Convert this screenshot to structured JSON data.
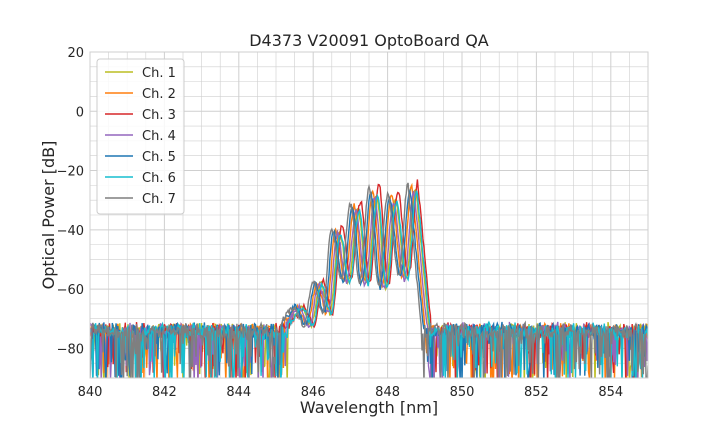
{
  "chart_data": {
    "type": "line",
    "title": "D4373 V20091 OptoBoard QA",
    "xlabel": "Wavelength [nm]",
    "ylabel": "Optical Power [dB]",
    "xlim": [
      840,
      855
    ],
    "ylim": [
      -90,
      20
    ],
    "xticks": [
      840,
      842,
      844,
      846,
      848,
      850,
      852,
      854
    ],
    "yticks": [
      -80,
      -60,
      -40,
      -20,
      0,
      20
    ],
    "grid": true,
    "legend_position": "top-left",
    "noise_floor_db": -72,
    "series": [
      {
        "name": "Ch. 1",
        "color": "#bcbd22",
        "shift": 0.05,
        "peak_db": -26
      },
      {
        "name": "Ch. 2",
        "color": "#ff7f0e",
        "shift": -0.05,
        "peak_db": -25
      },
      {
        "name": "Ch. 3",
        "color": "#d62728",
        "shift": 0.12,
        "peak_db": -23
      },
      {
        "name": "Ch. 4",
        "color": "#9467bd",
        "shift": 0.0,
        "peak_db": -27
      },
      {
        "name": "Ch. 5",
        "color": "#1f77b4",
        "shift": -0.1,
        "peak_db": -26
      },
      {
        "name": "Ch. 6",
        "color": "#17becf",
        "shift": 0.08,
        "peak_db": -27
      },
      {
        "name": "Ch. 7",
        "color": "#7f7f7f",
        "shift": -0.15,
        "peak_db": -24
      }
    ],
    "mode_peaks": [
      {
        "x": 845.6,
        "y": -66
      },
      {
        "x": 846.15,
        "y": -58
      },
      {
        "x": 846.65,
        "y": -40
      },
      {
        "x": 847.15,
        "y": -32
      },
      {
        "x": 847.65,
        "y": -27
      },
      {
        "x": 848.15,
        "y": -29
      },
      {
        "x": 848.7,
        "y": -25
      }
    ],
    "mode_troughs": [
      {
        "x": 845.9,
        "y": -72
      },
      {
        "x": 846.4,
        "y": -68
      },
      {
        "x": 846.9,
        "y": -57
      },
      {
        "x": 847.4,
        "y": -58
      },
      {
        "x": 847.9,
        "y": -59
      },
      {
        "x": 848.45,
        "y": -56
      }
    ]
  }
}
